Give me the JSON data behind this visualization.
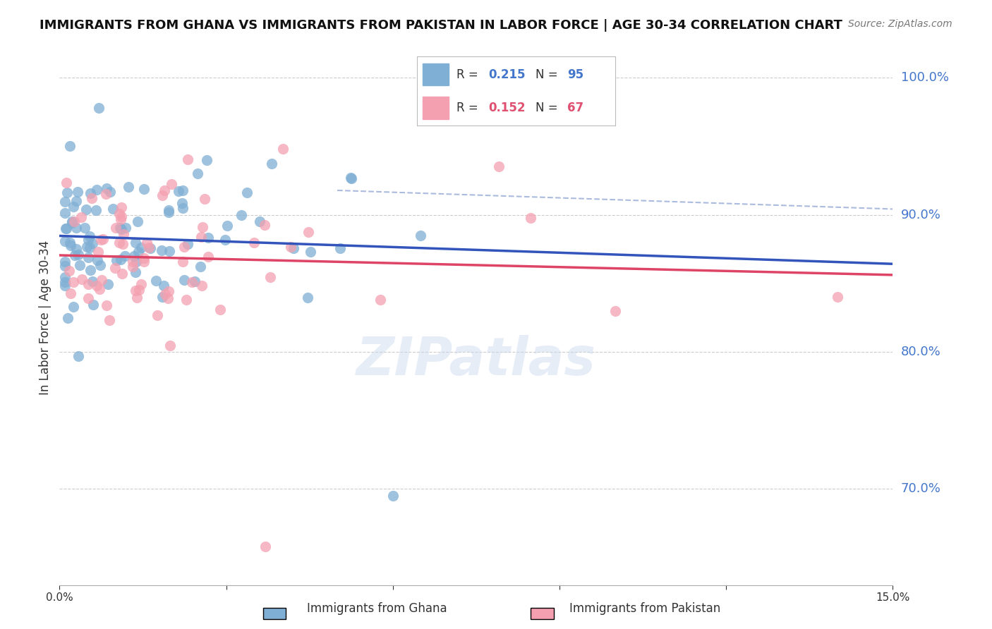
{
  "title": "IMMIGRANTS FROM GHANA VS IMMIGRANTS FROM PAKISTAN IN LABOR FORCE | AGE 30-34 CORRELATION CHART",
  "source": "Source: ZipAtlas.com",
  "ylabel": "In Labor Force | Age 30-34",
  "xlim": [
    0.0,
    0.15
  ],
  "ylim": [
    0.63,
    1.02
  ],
  "yticks": [
    0.7,
    0.8,
    0.9,
    1.0
  ],
  "ytick_labels": [
    "70.0%",
    "80.0%",
    "90.0%",
    "100.0%"
  ],
  "xticks": [
    0.0,
    0.03,
    0.06,
    0.09,
    0.12,
    0.15
  ],
  "xtick_labels": [
    "0.0%",
    "",
    "",
    "",
    "",
    "15.0%"
  ],
  "ghana_color": "#7fafd4",
  "pakistan_color": "#f4a0b0",
  "ghana_line_color": "#3355bb",
  "pakistan_line_color": "#dd4466",
  "dashed_line_color": "#aabbdd",
  "ghana_R": 0.215,
  "ghana_N": 95,
  "pakistan_R": 0.152,
  "pakistan_N": 67,
  "watermark": "ZIPatlas",
  "background_color": "#ffffff",
  "grid_color": "#cccccc",
  "axis_color": "#4477cc",
  "legend_ghana_R_color": "#4477cc",
  "legend_pakistan_R_color": "#e05070",
  "legend_ghana_label": "R = 0.215   N = 95",
  "legend_pakistan_label": "R = 0.152   N = 67",
  "bottom_legend_ghana": "Immigrants from Ghana",
  "bottom_legend_pakistan": "Immigrants from Pakistan"
}
